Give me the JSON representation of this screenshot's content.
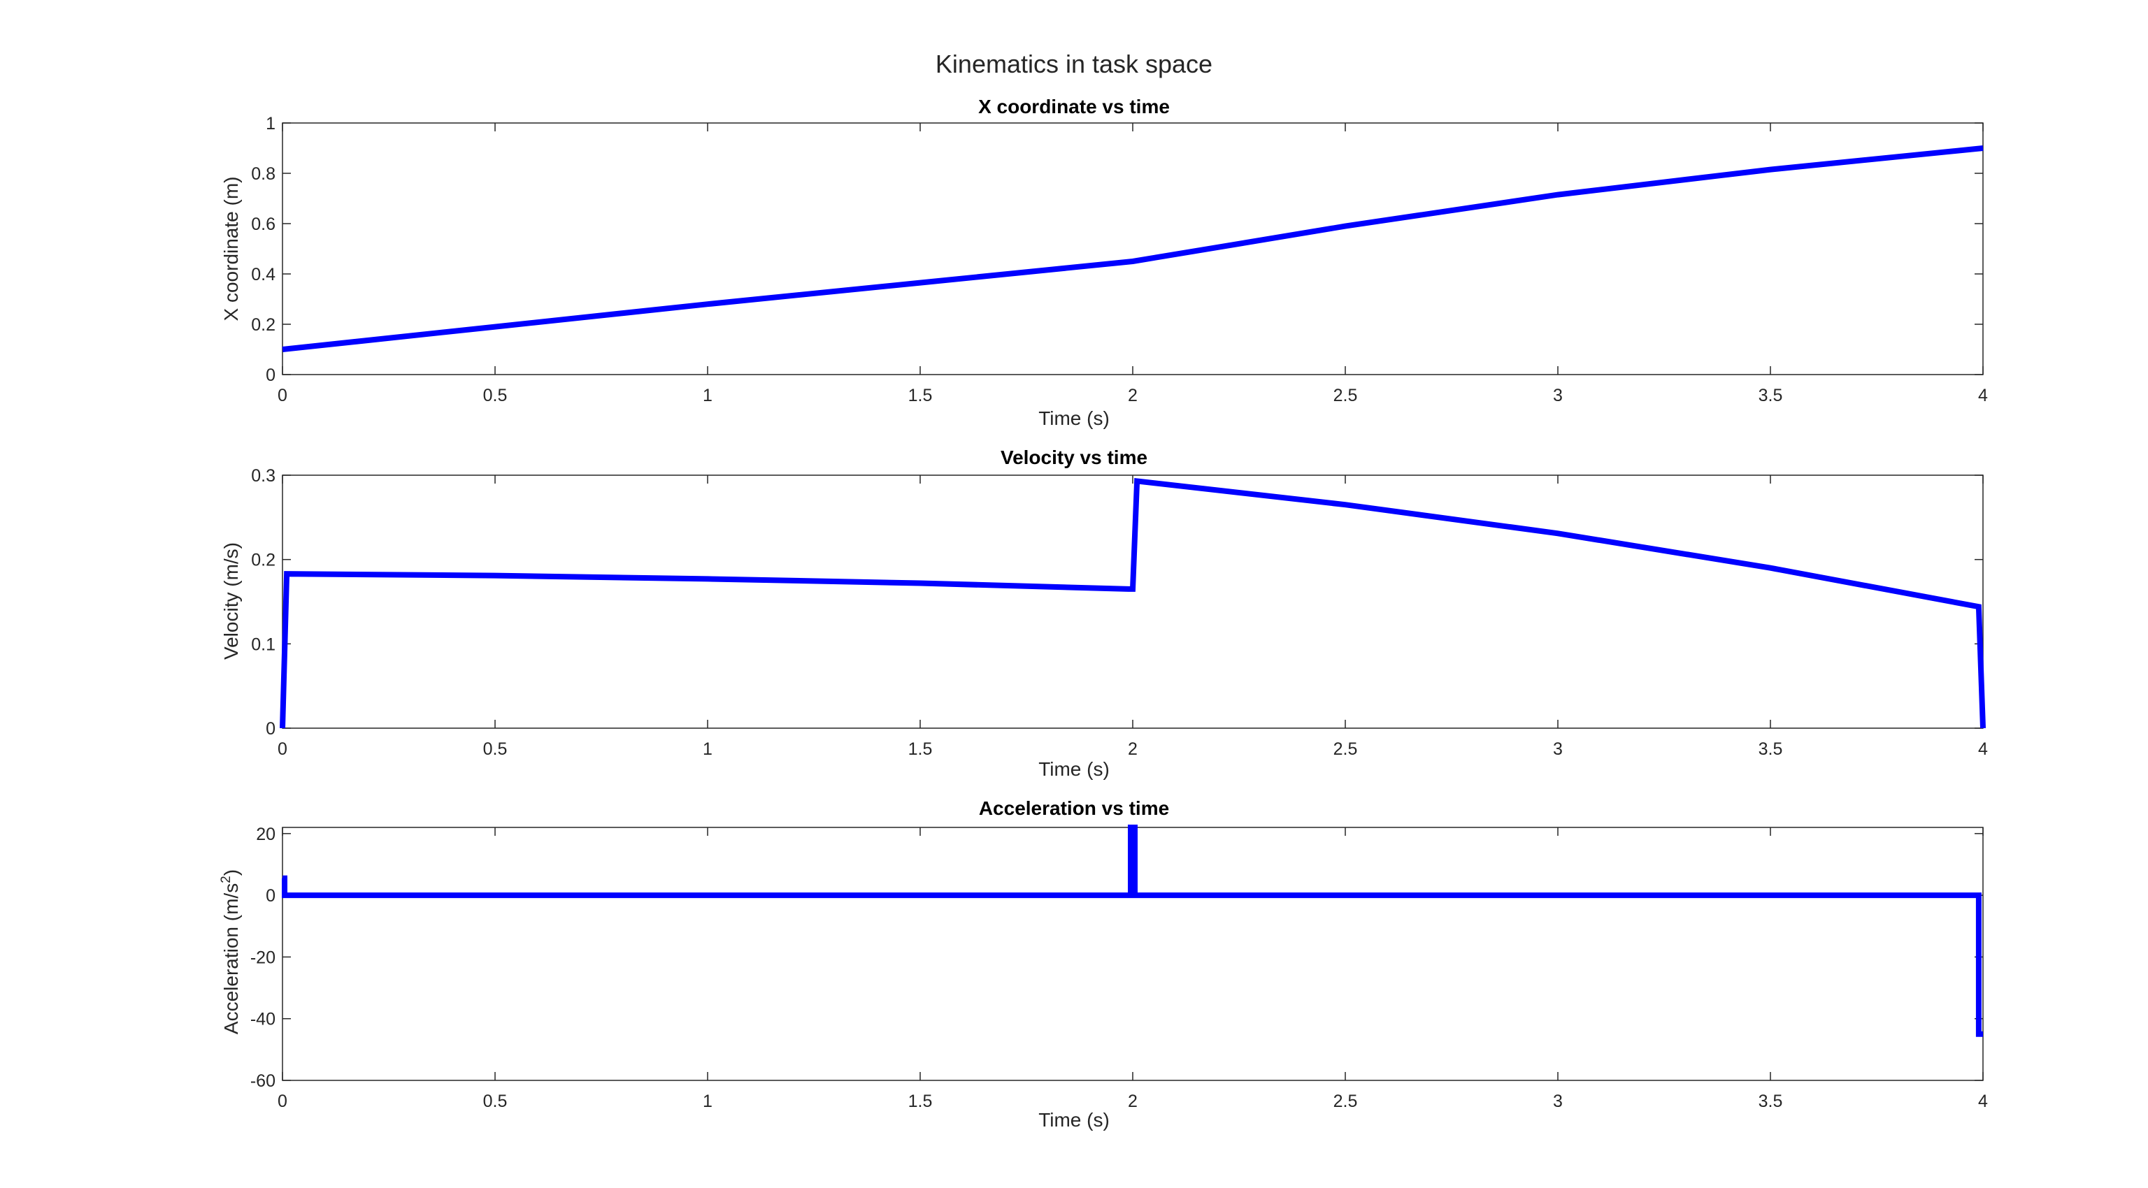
{
  "figure_title": "Kinematics in task space",
  "colors": {
    "line": "#0000ff",
    "axis": "#262626",
    "background": "#ffffff"
  },
  "chart_data": [
    {
      "type": "line",
      "title": "X coordinate vs time",
      "xlabel": "Time (s)",
      "ylabel": "X coordinate (m)",
      "xlim": [
        0,
        4
      ],
      "ylim": [
        0,
        1
      ],
      "xticks": [
        0,
        0.5,
        1,
        1.5,
        2,
        2.5,
        3,
        3.5,
        4
      ],
      "yticks": [
        0,
        0.2,
        0.4,
        0.6,
        0.8,
        1
      ],
      "grid": false,
      "series": [
        {
          "x": [
            0,
            0.5,
            1,
            1.5,
            2,
            2.5,
            3,
            3.5,
            4
          ],
          "y": [
            0.1,
            0.19,
            0.28,
            0.365,
            0.45,
            0.59,
            0.715,
            0.815,
            0.9
          ]
        }
      ]
    },
    {
      "type": "line",
      "title": "Velocity vs time",
      "xlabel": "Time (s)",
      "ylabel": "Velocity (m/s)",
      "xlim": [
        0,
        4
      ],
      "ylim": [
        0,
        0.3
      ],
      "xticks": [
        0,
        0.5,
        1,
        1.5,
        2,
        2.5,
        3,
        3.5,
        4
      ],
      "yticks": [
        0,
        0.1,
        0.2,
        0.3
      ],
      "grid": false,
      "series": [
        {
          "x": [
            0,
            0.01,
            0.5,
            1,
            1.5,
            1.99,
            2.0,
            2.01,
            2.5,
            3,
            3.5,
            3.99,
            4.0
          ],
          "y": [
            0,
            0.183,
            0.181,
            0.177,
            0.172,
            0.165,
            0.165,
            0.293,
            0.265,
            0.231,
            0.19,
            0.144,
            0
          ]
        }
      ]
    },
    {
      "type": "line",
      "title": "Acceleration vs time",
      "xlabel": "Time (s)",
      "ylabel": "Acceleration (m/s",
      "ylabel_sup": "2",
      "ylabel_end": ")",
      "xlim": [
        0,
        4
      ],
      "ylim": [
        -60,
        22
      ],
      "xticks": [
        0,
        0.5,
        1,
        1.5,
        2,
        2.5,
        3,
        3.5,
        4
      ],
      "yticks": [
        -60,
        -40,
        -20,
        0,
        20
      ],
      "grid": false,
      "series": [
        {
          "x": [
            0,
            0.005,
            0.005,
            0.01,
            1.99,
            1.995,
            1.995,
            2.005,
            2.005,
            2.01,
            3.985,
            3.99,
            3.99,
            4.0
          ],
          "y": [
            5.5,
            5.5,
            0,
            0,
            0,
            0,
            22,
            22,
            0,
            0,
            0,
            0,
            -45,
            -45
          ]
        }
      ]
    }
  ]
}
